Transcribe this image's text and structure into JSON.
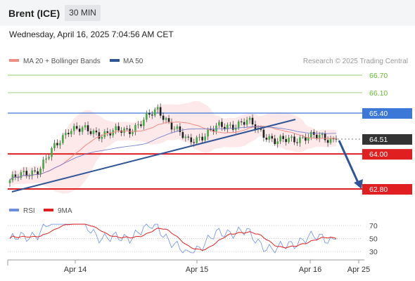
{
  "header": {
    "instrument": "Brent (ICE)",
    "timeframe": "30 MIN",
    "datetime": "Wednesday, April 16, 2025 7:04:56 AM CET"
  },
  "colors": {
    "candle": "#44aa44",
    "support": "#e02020",
    "resistance": "#3c78d8",
    "trend": "#2f5597",
    "ma20": "#f28b82",
    "ma50": "#6b74c9",
    "rsi": "#6b8fe0",
    "rsi_ma": "#e02020",
    "target": "#66bb33"
  },
  "chart_data": {
    "type": "candlestick",
    "legend": [
      {
        "label": "MA 20 + Bollinger Bands",
        "color": "#f28b82"
      },
      {
        "label": "MA 50",
        "color": "#2f5597"
      }
    ],
    "watermark": "Research © 2025 Trading Central",
    "y_range": [
      62.5,
      67.2
    ],
    "levels": [
      {
        "value": 66.7,
        "label": "66.70",
        "kind": "target"
      },
      {
        "value": 66.1,
        "label": "66.10",
        "kind": "target"
      },
      {
        "value": 65.4,
        "label": "65.40",
        "kind": "resistance"
      },
      {
        "value": 64.51,
        "label": "64.51",
        "kind": "last"
      },
      {
        "value": 64.0,
        "label": "64.00",
        "kind": "support"
      },
      {
        "value": 62.8,
        "label": "62.80",
        "kind": "support"
      }
    ],
    "x_ticks": [
      "Apr 14",
      "Apr 15",
      "Apr 16",
      "Apr 25"
    ],
    "key_closes": [
      63.1,
      63.5,
      64.9,
      64.7,
      64.8,
      65.5,
      64.4,
      64.9,
      65.1,
      64.4,
      64.6,
      64.51
    ],
    "rsi": {
      "legend": [
        "RSI",
        "9MA"
      ],
      "levels": [
        70,
        50,
        30
      ]
    }
  }
}
